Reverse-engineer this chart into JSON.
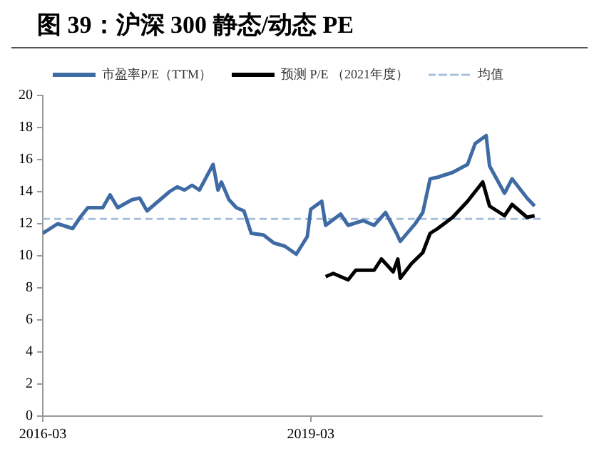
{
  "chart_data": {
    "type": "line",
    "title": "图 39：沪深 300 静态/动态 PE",
    "legend": "top",
    "grid": false,
    "marker": "none",
    "line_style": "solid",
    "xlim": [
      "2016-03",
      "2021-10"
    ],
    "xticks": [
      "2016-03",
      "2019-03"
    ],
    "ylim": [
      0,
      20
    ],
    "yticks": [
      0,
      2,
      4,
      6,
      8,
      10,
      12,
      14,
      16,
      18,
      20
    ],
    "ref_lines": [
      {
        "axis": "y",
        "value": 12.3,
        "label": "均值",
        "color": "#a9bfdc",
        "line_style": "dashed"
      }
    ],
    "series": [
      {
        "name": "市盈率P/E（TTM）",
        "color": "#3f6ba5",
        "x": [
          "2016-03",
          "2016-05",
          "2016-07",
          "2016-08",
          "2016-09",
          "2016-11",
          "2016-12",
          "2017-01",
          "2017-03",
          "2017-04",
          "2017-05",
          "2017-08",
          "2017-09",
          "2017-10",
          "2017-11",
          "2017-12",
          "2018-01-26",
          "2018-02-15",
          "2018-03",
          "2018-04",
          "2018-05",
          "2018-06",
          "2018-07",
          "2018-08-20",
          "2018-10",
          "2018-11-15",
          "2019-01",
          "2019-02-15",
          "2019-03",
          "2019-04-15",
          "2019-05",
          "2019-07",
          "2019-08",
          "2019-10",
          "2019-11-15",
          "2020-01",
          "2020-02-15",
          "2020-03",
          "2020-05",
          "2020-06",
          "2020-07",
          "2020-08",
          "2020-10",
          "2020-12",
          "2021-01",
          "2021-02-15",
          "2021-03",
          "2021-05",
          "2021-06",
          "2021-08",
          "2021-09"
        ],
        "values": [
          11.4,
          12.0,
          11.7,
          12.4,
          13.0,
          13.0,
          13.8,
          13.0,
          13.5,
          13.6,
          12.8,
          14.0,
          14.3,
          14.1,
          14.4,
          14.1,
          15.7,
          14.1,
          14.6,
          13.5,
          13.0,
          12.8,
          11.4,
          11.3,
          10.8,
          10.6,
          10.1,
          11.2,
          12.9,
          13.4,
          11.9,
          12.6,
          11.9,
          12.2,
          11.9,
          12.7,
          11.4,
          10.9,
          12.0,
          12.7,
          14.8,
          14.9,
          15.2,
          15.7,
          17.0,
          17.5,
          15.6,
          13.9,
          14.8,
          13.6,
          13.1
        ]
      },
      {
        "name": "预测 P/E （2021年度）",
        "color": "#000000",
        "x": [
          "2019-05",
          "2019-06",
          "2019-08",
          "2019-09",
          "2019-11-15",
          "2019-12-15",
          "2020-02",
          "2020-02-20",
          "2020-03",
          "2020-04-15",
          "2020-06",
          "2020-07",
          "2020-08",
          "2020-10",
          "2020-12",
          "2021-02",
          "2021-03",
          "2021-05",
          "2021-06",
          "2021-08",
          "2021-09"
        ],
        "values": [
          8.7,
          8.9,
          8.5,
          9.1,
          9.1,
          9.8,
          9.0,
          9.8,
          8.6,
          9.5,
          10.2,
          11.4,
          11.7,
          12.4,
          13.4,
          14.6,
          13.1,
          12.5,
          13.2,
          12.4,
          12.5
        ]
      }
    ]
  }
}
